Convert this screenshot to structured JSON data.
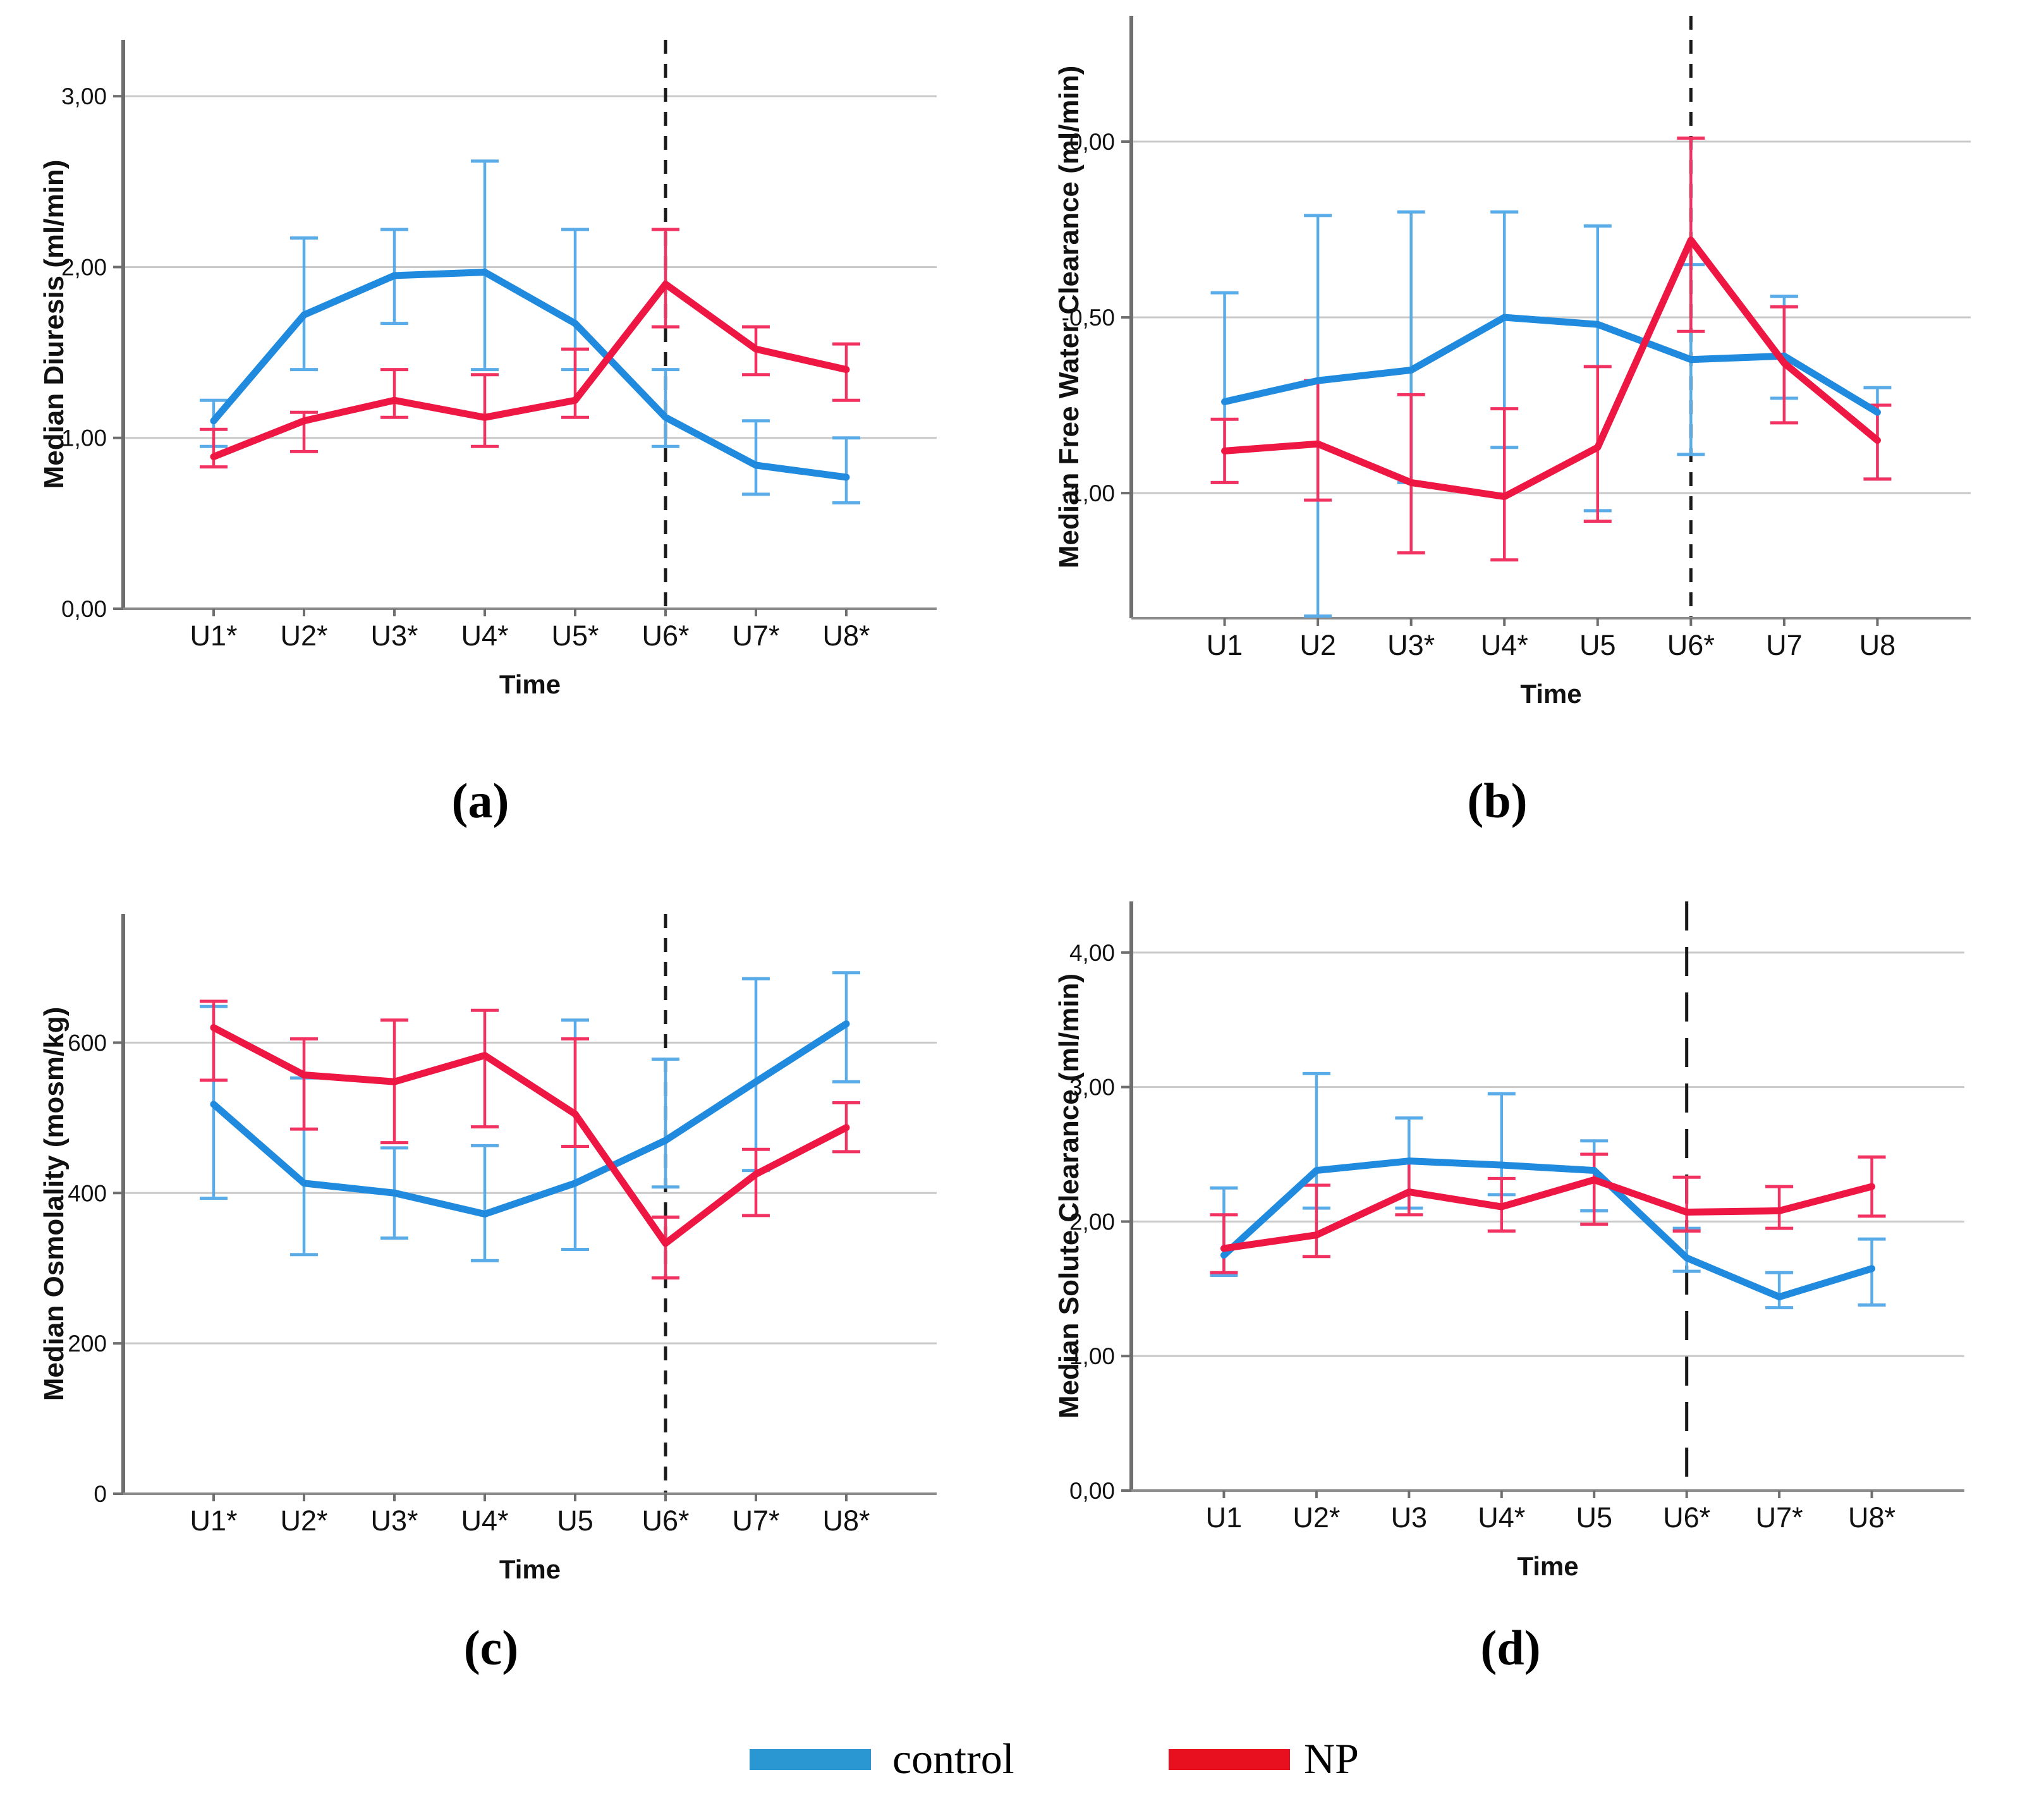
{
  "figure": {
    "captions": {
      "a": "(a)",
      "b": "(b)",
      "c": "(c)",
      "d": "(d)"
    },
    "legend": {
      "control_label": "control",
      "np_label": "NP",
      "control_color": "#2a97d2",
      "np_color": "#e8101f",
      "position": "bottom-center"
    },
    "colors": {
      "control_line": "#1f8ade",
      "control_error": "#5aace9",
      "np_line": "#ee1743",
      "np_error": "#f23260",
      "gridline": "#c9c9c9",
      "axis": "#6e6e6e",
      "dashed_marker": "#1a1a1a"
    }
  },
  "chart_data": [
    {
      "id": "a",
      "type": "line",
      "title": "",
      "ylabel": "Median Diuresis (ml/min)",
      "xlabel": "Time",
      "categories": [
        "U1*",
        "U2*",
        "U3*",
        "U4*",
        "U5*",
        "U6*",
        "U7*",
        "U8*"
      ],
      "ylim": [
        0,
        3.33
      ],
      "yticks": [
        {
          "value": 0,
          "label": "0,00"
        },
        {
          "value": 1,
          "label": "1,00"
        },
        {
          "value": 2,
          "label": "2,00"
        },
        {
          "value": 3,
          "label": "3,00"
        }
      ],
      "grid": true,
      "dashed_vline_index": 5,
      "series": [
        {
          "name": "control",
          "color": "#1f8ade",
          "error_color": "#5aace9",
          "values": [
            1.1,
            1.72,
            1.95,
            1.97,
            1.67,
            1.12,
            0.84,
            0.77
          ],
          "err_lo": [
            0.95,
            1.4,
            1.67,
            1.4,
            1.4,
            0.95,
            0.67,
            0.62
          ],
          "err_hi": [
            1.22,
            2.17,
            2.22,
            2.62,
            2.22,
            1.4,
            1.1,
            1.0
          ]
        },
        {
          "name": "NP",
          "color": "#ee1743",
          "error_color": "#f23260",
          "values": [
            0.89,
            1.1,
            1.22,
            1.12,
            1.22,
            1.9,
            1.52,
            1.4
          ],
          "err_lo": [
            0.83,
            0.92,
            1.12,
            0.95,
            1.12,
            1.65,
            1.37,
            1.22
          ],
          "err_hi": [
            1.05,
            1.15,
            1.4,
            1.37,
            1.52,
            2.22,
            1.65,
            1.55
          ]
        }
      ]
    },
    {
      "id": "b",
      "type": "line",
      "title": "",
      "ylabel": "Median Free Water Clearance (ml/min)",
      "xlabel": "Time",
      "categories": [
        "U1",
        "U2",
        "U3*",
        "U4*",
        "U5",
        "U6*",
        "U7",
        "U8"
      ],
      "ylim": [
        -1.356,
        0.358
      ],
      "yticks": [
        {
          "value": 0,
          "label": "0,00"
        },
        {
          "value": -0.5,
          "label": "-0,50"
        },
        {
          "value": -1,
          "label": "-1,00"
        }
      ],
      "grid": true,
      "dashed_vline_index": 5,
      "series": [
        {
          "name": "control",
          "color": "#1f8ade",
          "error_color": "#5aace9",
          "values": [
            -0.74,
            -0.68,
            -0.65,
            -0.5,
            -0.52,
            -0.62,
            -0.61,
            -0.77
          ],
          "err_lo": [
            -0.97,
            -1.35,
            -0.97,
            -0.87,
            -1.05,
            -0.89,
            -0.73,
            -0.96
          ],
          "err_hi": [
            -0.43,
            -0.21,
            -0.2,
            -0.2,
            -0.24,
            -0.35,
            -0.44,
            -0.7
          ]
        },
        {
          "name": "NP",
          "color": "#ee1743",
          "error_color": "#f23260",
          "values": [
            -0.88,
            -0.86,
            -0.97,
            -1.01,
            -0.87,
            -0.28,
            -0.63,
            -0.85
          ],
          "err_lo": [
            -0.97,
            -1.02,
            -1.17,
            -1.19,
            -1.08,
            -0.54,
            -0.8,
            -0.96
          ],
          "err_hi": [
            -0.79,
            -0.68,
            -0.72,
            -0.76,
            -0.64,
            0.01,
            -0.47,
            -0.75
          ]
        }
      ]
    },
    {
      "id": "c",
      "type": "line",
      "title": "",
      "ylabel": "Median Osmolality (mosm/kg)",
      "xlabel": "Time",
      "categories": [
        "U1*",
        "U2*",
        "U3*",
        "U4*",
        "U5",
        "U6*",
        "U7*",
        "U8*"
      ],
      "ylim": [
        0,
        771
      ],
      "yticks": [
        {
          "value": 0,
          "label": "0"
        },
        {
          "value": 200,
          "label": "200"
        },
        {
          "value": 400,
          "label": "400"
        },
        {
          "value": 600,
          "label": "600"
        }
      ],
      "grid": true,
      "dashed_vline_index": 5,
      "series": [
        {
          "name": "control",
          "color": "#1f8ade",
          "error_color": "#5aace9",
          "values": [
            518,
            413,
            400,
            372,
            413,
            470,
            548,
            625
          ],
          "err_lo": [
            393,
            318,
            340,
            310,
            325,
            408,
            430,
            548
          ],
          "err_hi": [
            648,
            553,
            460,
            463,
            630,
            578,
            685,
            693
          ]
        },
        {
          "name": "NP",
          "color": "#ee1743",
          "error_color": "#f23260",
          "values": [
            620,
            557,
            548,
            583,
            505,
            333,
            425,
            487
          ],
          "err_lo": [
            550,
            485,
            467,
            488,
            462,
            287,
            370,
            455
          ],
          "err_hi": [
            655,
            605,
            630,
            643,
            605,
            368,
            458,
            520
          ]
        }
      ]
    },
    {
      "id": "d",
      "type": "line",
      "title": "",
      "ylabel": "Median Solute Clearance (ml/min)",
      "xlabel": "Time",
      "categories": [
        "U1",
        "U2*",
        "U3",
        "U4*",
        "U5",
        "U6*",
        "U7*",
        "U8*"
      ],
      "ylim": [
        0,
        4.38
      ],
      "yticks": [
        {
          "value": 0,
          "label": "0,00"
        },
        {
          "value": 1,
          "label": "1,00"
        },
        {
          "value": 2,
          "label": "2,00"
        },
        {
          "value": 3,
          "label": "3,00"
        },
        {
          "value": 4,
          "label": "4,00"
        }
      ],
      "grid": true,
      "dashed_vline_index": 5,
      "series": [
        {
          "name": "control",
          "color": "#1f8ade",
          "error_color": "#5aace9",
          "values": [
            1.75,
            2.38,
            2.45,
            2.42,
            2.38,
            1.73,
            1.44,
            1.65
          ],
          "err_lo": [
            1.6,
            2.1,
            2.1,
            2.2,
            2.08,
            1.63,
            1.36,
            1.38
          ],
          "err_hi": [
            2.25,
            3.1,
            2.77,
            2.95,
            2.6,
            1.95,
            1.62,
            1.87
          ]
        },
        {
          "name": "NP",
          "color": "#ee1743",
          "error_color": "#f23260",
          "values": [
            1.8,
            1.9,
            2.22,
            2.11,
            2.31,
            2.07,
            2.08,
            2.26
          ],
          "err_lo": [
            1.62,
            1.74,
            2.05,
            1.93,
            1.98,
            1.93,
            1.95,
            2.04
          ],
          "err_hi": [
            2.05,
            2.27,
            2.45,
            2.32,
            2.5,
            2.33,
            2.26,
            2.48
          ]
        }
      ]
    }
  ]
}
